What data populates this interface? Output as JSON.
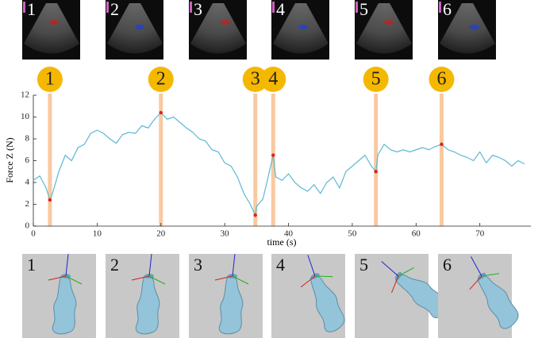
{
  "image_labels": [
    "1",
    "2",
    "3",
    "4",
    "5",
    "6"
  ],
  "pose_labels": [
    "1",
    "2",
    "3",
    "4",
    "5",
    "6"
  ],
  "chart_data": {
    "type": "line",
    "xlabel": "time (s)",
    "ylabel": "Force Z (N)",
    "color": "#5bb8d4",
    "x": [
      0,
      1,
      2,
      2.6,
      3,
      4,
      5,
      6,
      7,
      8,
      9,
      10,
      11,
      12,
      13,
      14,
      15,
      16,
      17,
      18,
      19,
      20,
      21,
      22,
      23,
      24,
      25,
      26,
      27,
      28,
      29,
      30,
      31,
      32,
      33,
      34,
      34.8,
      35,
      36,
      37,
      37.6,
      38,
      39,
      40,
      41,
      42,
      43,
      44,
      45,
      46,
      47,
      48,
      49,
      50,
      51,
      52,
      53,
      53.7,
      54,
      55,
      56,
      57,
      58,
      59,
      60,
      61,
      62,
      63,
      64,
      65,
      66,
      67,
      68,
      69,
      70,
      71,
      72,
      73,
      74,
      75,
      76,
      77
    ],
    "values": [
      4.2,
      4.6,
      3.5,
      2.4,
      3.0,
      5.0,
      6.5,
      6.0,
      7.2,
      7.5,
      8.5,
      8.8,
      8.5,
      8.0,
      7.6,
      8.4,
      8.6,
      8.5,
      9.2,
      9.0,
      9.8,
      10.4,
      9.8,
      10.0,
      9.5,
      9.0,
      8.6,
      8.0,
      7.8,
      7.0,
      6.8,
      5.8,
      5.5,
      4.5,
      3.0,
      2.0,
      1.0,
      1.8,
      2.5,
      5.0,
      6.5,
      4.5,
      4.2,
      4.8,
      4.0,
      3.5,
      3.2,
      3.8,
      3.0,
      4.0,
      4.5,
      3.5,
      5.0,
      5.5,
      6.0,
      6.5,
      5.5,
      5.0,
      6.5,
      7.5,
      7.0,
      6.8,
      7.0,
      6.8,
      7.0,
      7.2,
      7.0,
      7.3,
      7.5,
      7.0,
      6.8,
      6.5,
      6.3,
      6.0,
      6.8,
      5.8,
      6.5,
      6.3,
      6.0,
      5.5,
      6.0,
      5.7
    ],
    "markers": [
      {
        "label": "1",
        "x": 2.6,
        "y": 2.4
      },
      {
        "label": "2",
        "x": 20,
        "y": 10.4
      },
      {
        "label": "3",
        "x": 34.8,
        "y": 1.0
      },
      {
        "label": "4",
        "x": 37.6,
        "y": 6.5
      },
      {
        "label": "5",
        "x": 53.7,
        "y": 5.0
      },
      {
        "label": "6",
        "x": 64,
        "y": 7.5
      }
    ],
    "marker_color": "#f5b800",
    "band_color": "#f8c9a0",
    "point_color": "#e02020",
    "xlim": [
      0,
      78
    ],
    "ylim": [
      0,
      12
    ],
    "xticks": [
      0,
      10,
      20,
      30,
      40,
      50,
      60,
      70
    ],
    "yticks": [
      0,
      2,
      4,
      6,
      8,
      10,
      12
    ]
  }
}
